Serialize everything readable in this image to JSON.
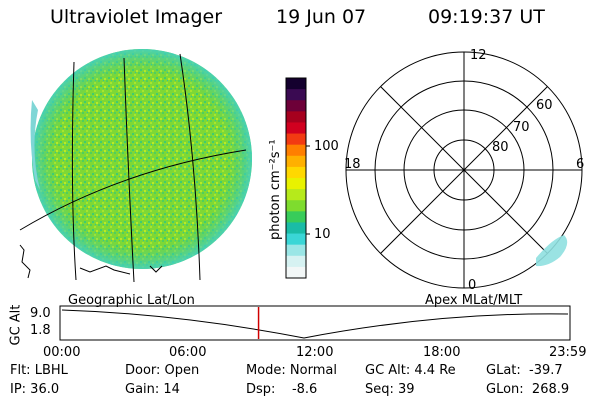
{
  "header": {
    "title": "Ultraviolet Imager",
    "date": "19 Jun 07",
    "time": "09:19:37 UT"
  },
  "colorbar": {
    "unit_label": "photon cm⁻²s⁻¹",
    "ticks": [
      "100",
      "10"
    ],
    "colors": [
      "#14002e",
      "#3a0a52",
      "#6d0038",
      "#a6001e",
      "#d1001f",
      "#f23a12",
      "#ff7f00",
      "#ffb000",
      "#ffd800",
      "#e8f200",
      "#b6ea1b",
      "#7edc2e",
      "#38cc5a",
      "#1abca6",
      "#3ad6d6",
      "#9ae6e6",
      "#d6f2f2",
      "#f2f7f7"
    ]
  },
  "polar_plot": {
    "mlt_labels": {
      "top": "12",
      "left": "18",
      "right": "6",
      "bottom": "0"
    },
    "lat_labels": [
      "60",
      "70",
      "80"
    ]
  },
  "timeline": {
    "axis_label": "GC Alt",
    "y_ticks": [
      "9.0",
      "1.8"
    ],
    "left_title": "Geographic Lat/Lon",
    "right_title": "Apex MLat/MLT",
    "x_ticks": [
      "00:00",
      "06:00",
      "12:00",
      "18:00",
      "23:59"
    ],
    "marker_time": "09:19"
  },
  "status": {
    "filter": "Flt: LBHL",
    "ip": "IP: 36.0",
    "door": "Door: Open",
    "gain": "Gain: 14",
    "mode": "Mode: Normal",
    "dsp": "Dsp:    -8.6",
    "gc_alt": "GC Alt: 4.4 Re",
    "seq": "Seq: 39",
    "glat": "GLat:  -39.7",
    "glon": "GLon:  268.9"
  }
}
